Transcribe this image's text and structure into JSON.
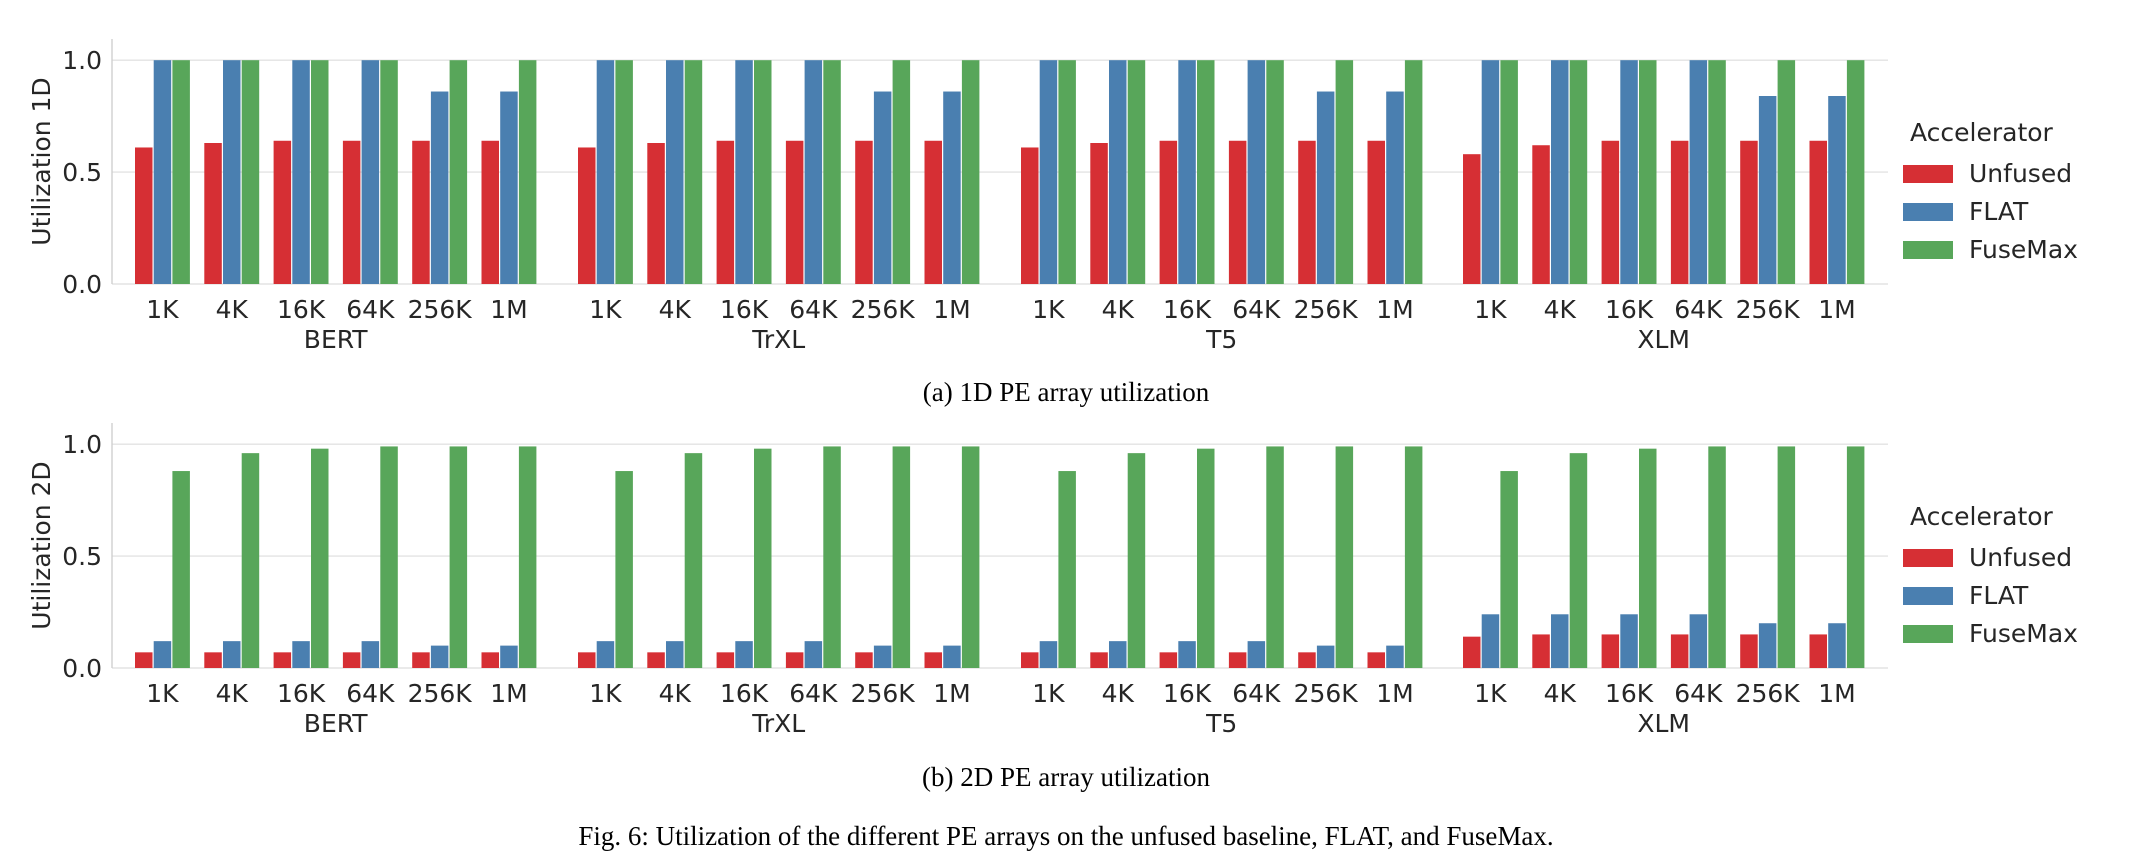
{
  "figure_caption": "Fig. 6: Utilization of the different PE arrays on the unfused baseline, FLAT, and FuseMax.",
  "series_colors": {
    "Unfused": "#d62f34",
    "FLAT": "#4a7fb0",
    "FuseMax": "#58a65a"
  },
  "chart_data": [
    {
      "type": "bar",
      "caption": "(a) 1D PE array utilization",
      "ylabel": "Utilization 1D",
      "ylim": [
        0,
        1.05
      ],
      "yticks": [
        "0.0",
        "0.5",
        "1.0"
      ],
      "legend_title": "Accelerator",
      "legend_placement": "right",
      "grid": "horizontal",
      "groups": [
        "BERT",
        "TrXL",
        "T5",
        "XLM"
      ],
      "categories": [
        "1K",
        "4K",
        "16K",
        "64K",
        "256K",
        "1M"
      ],
      "series": [
        {
          "name": "Unfused",
          "values": [
            [
              0.61,
              0.63,
              0.64,
              0.64,
              0.64,
              0.64
            ],
            [
              0.61,
              0.63,
              0.64,
              0.64,
              0.64,
              0.64
            ],
            [
              0.61,
              0.63,
              0.64,
              0.64,
              0.64,
              0.64
            ],
            [
              0.58,
              0.62,
              0.64,
              0.64,
              0.64,
              0.64
            ]
          ]
        },
        {
          "name": "FLAT",
          "values": [
            [
              1.0,
              1.0,
              1.0,
              1.0,
              0.86,
              0.86
            ],
            [
              1.0,
              1.0,
              1.0,
              1.0,
              0.86,
              0.86
            ],
            [
              1.0,
              1.0,
              1.0,
              1.0,
              0.86,
              0.86
            ],
            [
              1.0,
              1.0,
              1.0,
              1.0,
              0.84,
              0.84
            ]
          ]
        },
        {
          "name": "FuseMax",
          "values": [
            [
              1.0,
              1.0,
              1.0,
              1.0,
              1.0,
              1.0
            ],
            [
              1.0,
              1.0,
              1.0,
              1.0,
              1.0,
              1.0
            ],
            [
              1.0,
              1.0,
              1.0,
              1.0,
              1.0,
              1.0
            ],
            [
              1.0,
              1.0,
              1.0,
              1.0,
              1.0,
              1.0
            ]
          ]
        }
      ]
    },
    {
      "type": "bar",
      "caption": "(b) 2D PE array utilization",
      "ylabel": "Utilization 2D",
      "ylim": [
        0,
        1.05
      ],
      "yticks": [
        "0.0",
        "0.5",
        "1.0"
      ],
      "legend_title": "Accelerator",
      "legend_placement": "right",
      "grid": "horizontal",
      "groups": [
        "BERT",
        "TrXL",
        "T5",
        "XLM"
      ],
      "categories": [
        "1K",
        "4K",
        "16K",
        "64K",
        "256K",
        "1M"
      ],
      "series": [
        {
          "name": "Unfused",
          "values": [
            [
              0.07,
              0.07,
              0.07,
              0.07,
              0.07,
              0.07
            ],
            [
              0.07,
              0.07,
              0.07,
              0.07,
              0.07,
              0.07
            ],
            [
              0.07,
              0.07,
              0.07,
              0.07,
              0.07,
              0.07
            ],
            [
              0.14,
              0.15,
              0.15,
              0.15,
              0.15,
              0.15
            ]
          ]
        },
        {
          "name": "FLAT",
          "values": [
            [
              0.12,
              0.12,
              0.12,
              0.12,
              0.1,
              0.1
            ],
            [
              0.12,
              0.12,
              0.12,
              0.12,
              0.1,
              0.1
            ],
            [
              0.12,
              0.12,
              0.12,
              0.12,
              0.1,
              0.1
            ],
            [
              0.24,
              0.24,
              0.24,
              0.24,
              0.2,
              0.2
            ]
          ]
        },
        {
          "name": "FuseMax",
          "values": [
            [
              0.88,
              0.96,
              0.98,
              0.99,
              0.99,
              0.99
            ],
            [
              0.88,
              0.96,
              0.98,
              0.99,
              0.99,
              0.99
            ],
            [
              0.88,
              0.96,
              0.98,
              0.99,
              0.99,
              0.99
            ],
            [
              0.88,
              0.96,
              0.98,
              0.99,
              0.99,
              0.99
            ]
          ]
        }
      ]
    }
  ]
}
